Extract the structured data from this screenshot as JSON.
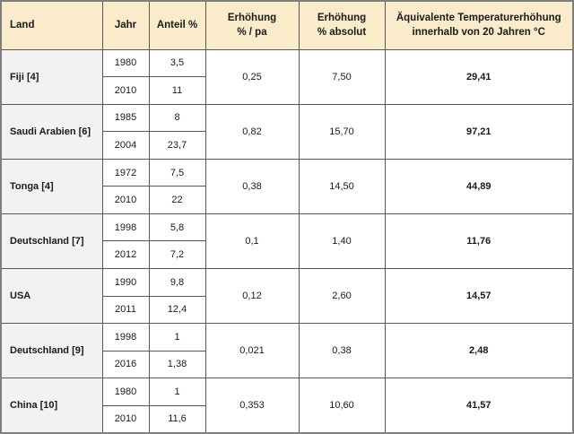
{
  "colors": {
    "header_bg": "#faecca",
    "land_column_bg": "#f2f2f2",
    "cell_bg": "#ffffff",
    "border_inner": "#595959",
    "border_outer": "#7f7f7f",
    "text": "#1a1a1a"
  },
  "chart_data": {
    "type": "table",
    "columns": [
      "Land",
      "Jahr",
      "Anteil %",
      "Erhöhung\n% / pa",
      "Erhöhung\n% absolut",
      "Äquivalente Temperaturerhöhung\ninnerhalb von 20 Jahren °C"
    ],
    "groups": [
      {
        "land": "Fiji [4]",
        "entries": [
          [
            "1980",
            "3,5"
          ],
          [
            "2010",
            "11"
          ]
        ],
        "erhoehung_pct_pa": "0,25",
        "erhoehung_pct_absolut": "7,50",
        "temperaturerhoehung_20_jahre_c": "29,41"
      },
      {
        "land": "Saudi Arabien [6]",
        "entries": [
          [
            "1985",
            "8"
          ],
          [
            "2004",
            "23,7"
          ]
        ],
        "erhoehung_pct_pa": "0,82",
        "erhoehung_pct_absolut": "15,70",
        "temperaturerhoehung_20_jahre_c": "97,21"
      },
      {
        "land": "Tonga [4]",
        "entries": [
          [
            "1972",
            "7,5"
          ],
          [
            "2010",
            "22"
          ]
        ],
        "erhoehung_pct_pa": "0,38",
        "erhoehung_pct_absolut": "14,50",
        "temperaturerhoehung_20_jahre_c": "44,89"
      },
      {
        "land": "Deutschland [7]",
        "entries": [
          [
            "1998",
            "5,8"
          ],
          [
            "2012",
            "7,2"
          ]
        ],
        "erhoehung_pct_pa": "0,1",
        "erhoehung_pct_absolut": "1,40",
        "temperaturerhoehung_20_jahre_c": "11,76"
      },
      {
        "land": "USA",
        "entries": [
          [
            "1990",
            "9,8"
          ],
          [
            "2011",
            "12,4"
          ]
        ],
        "erhoehung_pct_pa": "0,12",
        "erhoehung_pct_absolut": "2,60",
        "temperaturerhoehung_20_jahre_c": "14,57"
      },
      {
        "land": "Deutschland [9]",
        "entries": [
          [
            "1998",
            "1"
          ],
          [
            "2016",
            "1,38"
          ]
        ],
        "erhoehung_pct_pa": "0,021",
        "erhoehung_pct_absolut": "0,38",
        "temperaturerhoehung_20_jahre_c": "2,48"
      },
      {
        "land": "China [10]",
        "entries": [
          [
            "1980",
            "1"
          ],
          [
            "2010",
            "11,6"
          ]
        ],
        "erhoehung_pct_pa": "0,353",
        "erhoehung_pct_absolut": "10,60",
        "temperaturerhoehung_20_jahre_c": "41,57"
      }
    ]
  }
}
